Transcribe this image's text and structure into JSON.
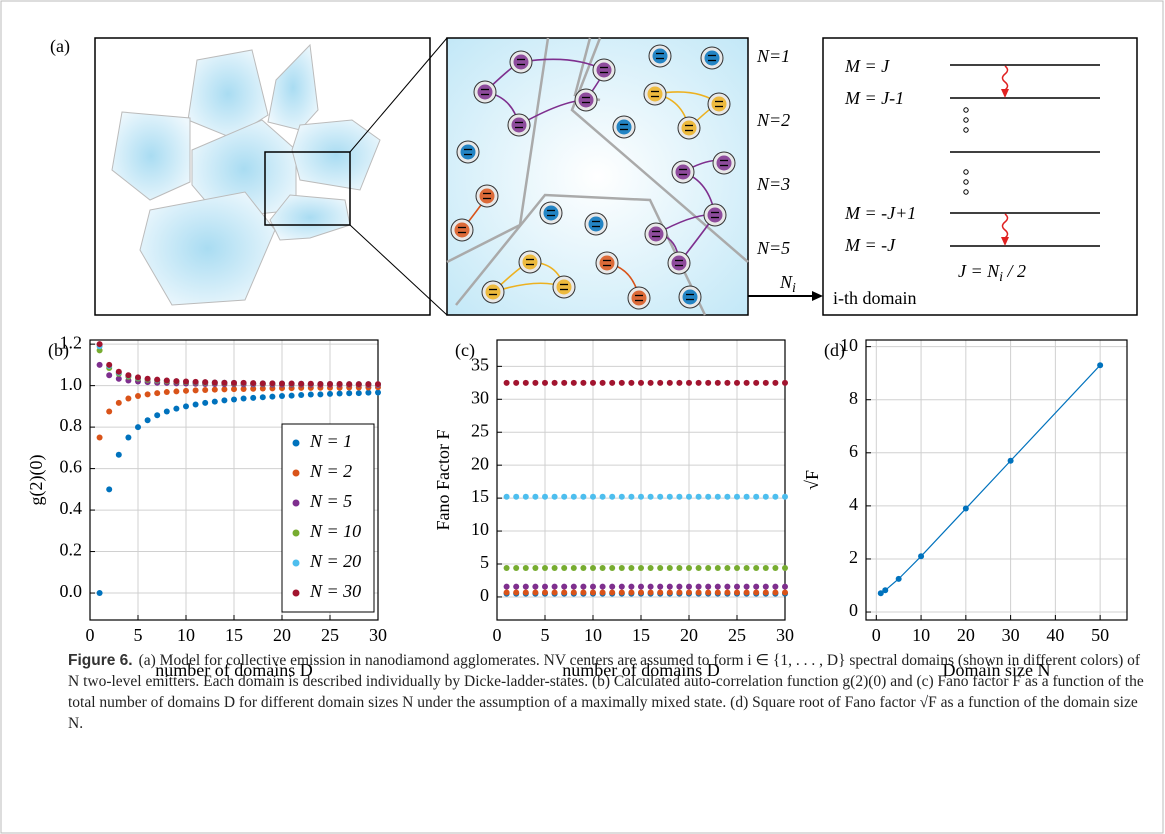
{
  "panel_a": {
    "label": "(a)",
    "domain_labels": [
      {
        "text": "N=1",
        "color": "#0072BD"
      },
      {
        "text": "N=2",
        "color": "#D95319"
      },
      {
        "text": "N=3",
        "color": "#EDB120"
      },
      {
        "text": "N=5",
        "color": "#7E2F8E"
      }
    ],
    "levels": [
      "M = J",
      "M = J-1",
      "M = -J+1",
      "M = -J"
    ],
    "arrow_label": {
      "main": "N",
      "sub": "i"
    },
    "domain_text": "i-th domain",
    "j_formula": {
      "before": "J = N",
      "sub": "i",
      "after": " / 2"
    }
  },
  "chart_data": [
    {
      "type": "scatter",
      "panel_label": "(b)",
      "x_label": "number of domains D",
      "y_label": "g(2)(0)",
      "x": [
        1,
        2,
        3,
        4,
        5,
        6,
        7,
        8,
        9,
        10,
        11,
        12,
        13,
        14,
        15,
        16,
        17,
        18,
        19,
        20,
        21,
        22,
        23,
        24,
        25,
        26,
        27,
        28,
        29,
        30
      ],
      "xlim": [
        0,
        30
      ],
      "xticks": [
        0,
        5,
        10,
        15,
        20,
        25,
        30
      ],
      "ylim": [
        -0.13,
        1.22
      ],
      "yticks": [
        {
          "value": 0,
          "label": "0.0"
        },
        0.2,
        0.4,
        0.6,
        0.8,
        {
          "value": 1,
          "label": "1.0"
        },
        1.2
      ],
      "grid": true,
      "legend": "lower right",
      "series": [
        {
          "name": "N = 1",
          "color": "#0072BD",
          "values": [
            0,
            0.5,
            0.667,
            0.75,
            0.8,
            0.833,
            0.857,
            0.875,
            0.889,
            0.9,
            0.909,
            0.917,
            0.923,
            0.929,
            0.933,
            0.938,
            0.941,
            0.944,
            0.947,
            0.95,
            0.952,
            0.955,
            0.957,
            0.958,
            0.96,
            0.962,
            0.963,
            0.964,
            0.966,
            0.967
          ]
        },
        {
          "name": "N = 2",
          "color": "#D95319",
          "values": [
            0.75,
            0.875,
            0.917,
            0.938,
            0.95,
            0.958,
            0.964,
            0.969,
            0.972,
            0.975,
            0.977,
            0.979,
            0.981,
            0.982,
            0.983,
            0.984,
            0.985,
            0.986,
            0.987,
            0.988,
            0.988,
            0.989,
            0.989,
            0.99,
            0.99,
            0.99,
            0.991,
            0.991,
            0.991,
            0.992
          ]
        },
        {
          "name": "N = 5",
          "color": "#7E2F8E",
          "values": [
            1.1,
            1.05,
            1.033,
            1.025,
            1.02,
            1.017,
            1.014,
            1.013,
            1.011,
            1.01,
            1.009,
            1.008,
            1.008,
            1.007,
            1.007,
            1.006,
            1.006,
            1.006,
            1.005,
            1.005,
            1.005,
            1.005,
            1.004,
            1.004,
            1.004,
            1.004,
            1.004,
            1.004,
            1.003,
            1.003
          ]
        },
        {
          "name": "N = 10",
          "color": "#77AC30",
          "values": [
            1.17,
            1.085,
            1.057,
            1.043,
            1.034,
            1.028,
            1.024,
            1.021,
            1.019,
            1.017,
            1.015,
            1.014,
            1.013,
            1.012,
            1.011,
            1.011,
            1.01,
            1.009,
            1.009,
            1.009,
            1.008,
            1.008,
            1.007,
            1.007,
            1.007,
            1.007,
            1.006,
            1.006,
            1.006,
            1.006
          ]
        },
        {
          "name": "N = 20",
          "color": "#4DBEEE",
          "values": [
            1.19,
            1.095,
            1.063,
            1.048,
            1.038,
            1.032,
            1.027,
            1.024,
            1.021,
            1.019,
            1.017,
            1.016,
            1.015,
            1.014,
            1.013,
            1.012,
            1.011,
            1.011,
            1.01,
            1.01,
            1.009,
            1.009,
            1.008,
            1.008,
            1.008,
            1.007,
            1.007,
            1.007,
            1.007,
            1.006
          ]
        },
        {
          "name": "N = 30",
          "color": "#A2142F",
          "values": [
            1.2,
            1.1,
            1.067,
            1.05,
            1.04,
            1.033,
            1.029,
            1.025,
            1.022,
            1.02,
            1.018,
            1.017,
            1.015,
            1.014,
            1.013,
            1.013,
            1.012,
            1.011,
            1.011,
            1.01,
            1.01,
            1.009,
            1.009,
            1.008,
            1.008,
            1.008,
            1.007,
            1.007,
            1.007,
            1.007
          ]
        }
      ]
    },
    {
      "type": "scatter",
      "panel_label": "(c)",
      "x_label": "number of domains D",
      "y_label": "Fano Factor F",
      "x": [
        1,
        2,
        3,
        4,
        5,
        6,
        7,
        8,
        9,
        10,
        11,
        12,
        13,
        14,
        15,
        16,
        17,
        18,
        19,
        20,
        21,
        22,
        23,
        24,
        25,
        26,
        27,
        28,
        29,
        30
      ],
      "xlim": [
        0,
        30
      ],
      "xticks": [
        0,
        5,
        10,
        15,
        20,
        25,
        30
      ],
      "ylim": [
        -3.5,
        39
      ],
      "yticks": [
        0,
        5,
        10,
        15,
        20,
        25,
        30,
        35
      ],
      "grid": true,
      "series": [
        {
          "color": "#0072BD",
          "values": [
            0.5,
            0.5,
            0.5,
            0.5,
            0.5,
            0.5,
            0.5,
            0.5,
            0.5,
            0.5,
            0.5,
            0.5,
            0.5,
            0.5,
            0.5,
            0.5,
            0.5,
            0.5,
            0.5,
            0.5,
            0.5,
            0.5,
            0.5,
            0.5,
            0.5,
            0.5,
            0.5,
            0.5,
            0.5,
            0.5
          ]
        },
        {
          "color": "#D95319",
          "values": [
            0.67,
            0.67,
            0.67,
            0.67,
            0.67,
            0.67,
            0.67,
            0.67,
            0.67,
            0.67,
            0.67,
            0.67,
            0.67,
            0.67,
            0.67,
            0.67,
            0.67,
            0.67,
            0.67,
            0.67,
            0.67,
            0.67,
            0.67,
            0.67,
            0.67,
            0.67,
            0.67,
            0.67,
            0.67,
            0.67
          ]
        },
        {
          "color": "#7E2F8E",
          "values": [
            1.56,
            1.56,
            1.56,
            1.56,
            1.56,
            1.56,
            1.56,
            1.56,
            1.56,
            1.56,
            1.56,
            1.56,
            1.56,
            1.56,
            1.56,
            1.56,
            1.56,
            1.56,
            1.56,
            1.56,
            1.56,
            1.56,
            1.56,
            1.56,
            1.56,
            1.56,
            1.56,
            1.56,
            1.56,
            1.56
          ]
        },
        {
          "color": "#77AC30",
          "values": [
            4.4,
            4.4,
            4.4,
            4.4,
            4.4,
            4.4,
            4.4,
            4.4,
            4.4,
            4.4,
            4.4,
            4.4,
            4.4,
            4.4,
            4.4,
            4.4,
            4.4,
            4.4,
            4.4,
            4.4,
            4.4,
            4.4,
            4.4,
            4.4,
            4.4,
            4.4,
            4.4,
            4.4,
            4.4,
            4.4
          ]
        },
        {
          "color": "#4DBEEE",
          "values": [
            15.2,
            15.2,
            15.2,
            15.2,
            15.2,
            15.2,
            15.2,
            15.2,
            15.2,
            15.2,
            15.2,
            15.2,
            15.2,
            15.2,
            15.2,
            15.2,
            15.2,
            15.2,
            15.2,
            15.2,
            15.2,
            15.2,
            15.2,
            15.2,
            15.2,
            15.2,
            15.2,
            15.2,
            15.2,
            15.2
          ]
        },
        {
          "color": "#A2142F",
          "values": [
            32.5,
            32.5,
            32.5,
            32.5,
            32.5,
            32.5,
            32.5,
            32.5,
            32.5,
            32.5,
            32.5,
            32.5,
            32.5,
            32.5,
            32.5,
            32.5,
            32.5,
            32.5,
            32.5,
            32.5,
            32.5,
            32.5,
            32.5,
            32.5,
            32.5,
            32.5,
            32.5,
            32.5,
            32.5,
            32.5
          ]
        }
      ]
    },
    {
      "type": "line",
      "panel_label": "(d)",
      "x_label": "Domain size N",
      "y_label": "√F",
      "x": [
        1,
        2,
        5,
        10,
        20,
        30,
        50
      ],
      "xlim": [
        -2.3,
        56
      ],
      "xticks": [
        0,
        10,
        20,
        30,
        40,
        50
      ],
      "ylim": [
        -0.3,
        10.25
      ],
      "yticks": [
        0,
        2,
        4,
        6,
        8,
        10
      ],
      "grid": true,
      "series": [
        {
          "color": "#0072BD",
          "values": [
            0.71,
            0.82,
            1.25,
            2.1,
            3.9,
            5.7,
            9.3
          ]
        }
      ]
    }
  ],
  "caption": {
    "label": "Figure 6.",
    "text": "(a) Model for collective emission in nanodiamond agglomerates. NV centers are assumed to form i ∈ {1, . . . , D} spectral domains (shown in different colors) of N two-level emitters. Each domain is described individually by Dicke-ladder-states. (b) Calculated auto-correlation function g(2)(0) and (c) Fano factor F as a function of the total number of domains D for different domain sizes N under the assumption of a maximally mixed state. (d) Square root of Fano factor √F as a function of the domain size N."
  }
}
